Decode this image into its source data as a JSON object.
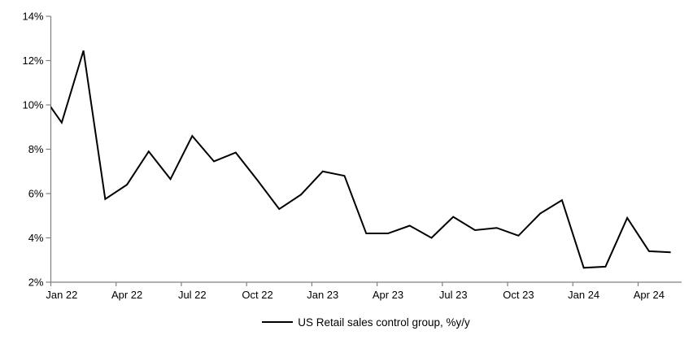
{
  "chart_data": {
    "type": "line",
    "title": "",
    "background": "#ffffff",
    "axis_color": "#808080",
    "line_color": "#000000",
    "grid": "off",
    "legend": {
      "position": "bottom-center",
      "label": "US Retail sales control group, %y/y"
    },
    "y_axis": {
      "ticks": [
        2,
        4,
        6,
        8,
        10,
        12,
        14
      ],
      "tick_labels": [
        "2%",
        "4%",
        "6%",
        "8%",
        "10%",
        "12%",
        "14%"
      ],
      "range": [
        2,
        14
      ]
    },
    "x_axis": {
      "tick_labels": [
        "Jan 22",
        "Apr 22",
        "Jul 22",
        "Oct 22",
        "Jan 23",
        "Apr 23",
        "Jul 23",
        "Oct 23",
        "Jan 24",
        "Apr 24"
      ]
    },
    "series": [
      {
        "name": "US Retail sales control group, %y/y",
        "color": "#000000",
        "x": [
          "Dec 21",
          "Jan 22",
          "Feb 22",
          "Mar 22",
          "Apr 22",
          "May 22",
          "Jun 22",
          "Jul 22",
          "Aug 22",
          "Sep 22",
          "Oct 22",
          "Nov 22",
          "Dec 22",
          "Jan 23",
          "Feb 23",
          "Mar 23",
          "Apr 23",
          "May 23",
          "Jun 23",
          "Jul 23",
          "Aug 23",
          "Sep 23",
          "Oct 23",
          "Nov 23",
          "Dec 23",
          "Jan 24",
          "Feb 24",
          "Mar 24",
          "Apr 24",
          "May 24"
        ],
        "values": [
          10.6,
          9.2,
          12.45,
          5.75,
          6.4,
          7.9,
          6.65,
          8.6,
          7.45,
          7.85,
          6.6,
          5.3,
          5.95,
          7.0,
          6.8,
          4.2,
          4.2,
          4.55,
          4.0,
          4.95,
          4.35,
          4.45,
          4.1,
          5.1,
          5.7,
          2.65,
          2.7,
          4.9,
          3.4,
          3.35
        ]
      }
    ]
  }
}
